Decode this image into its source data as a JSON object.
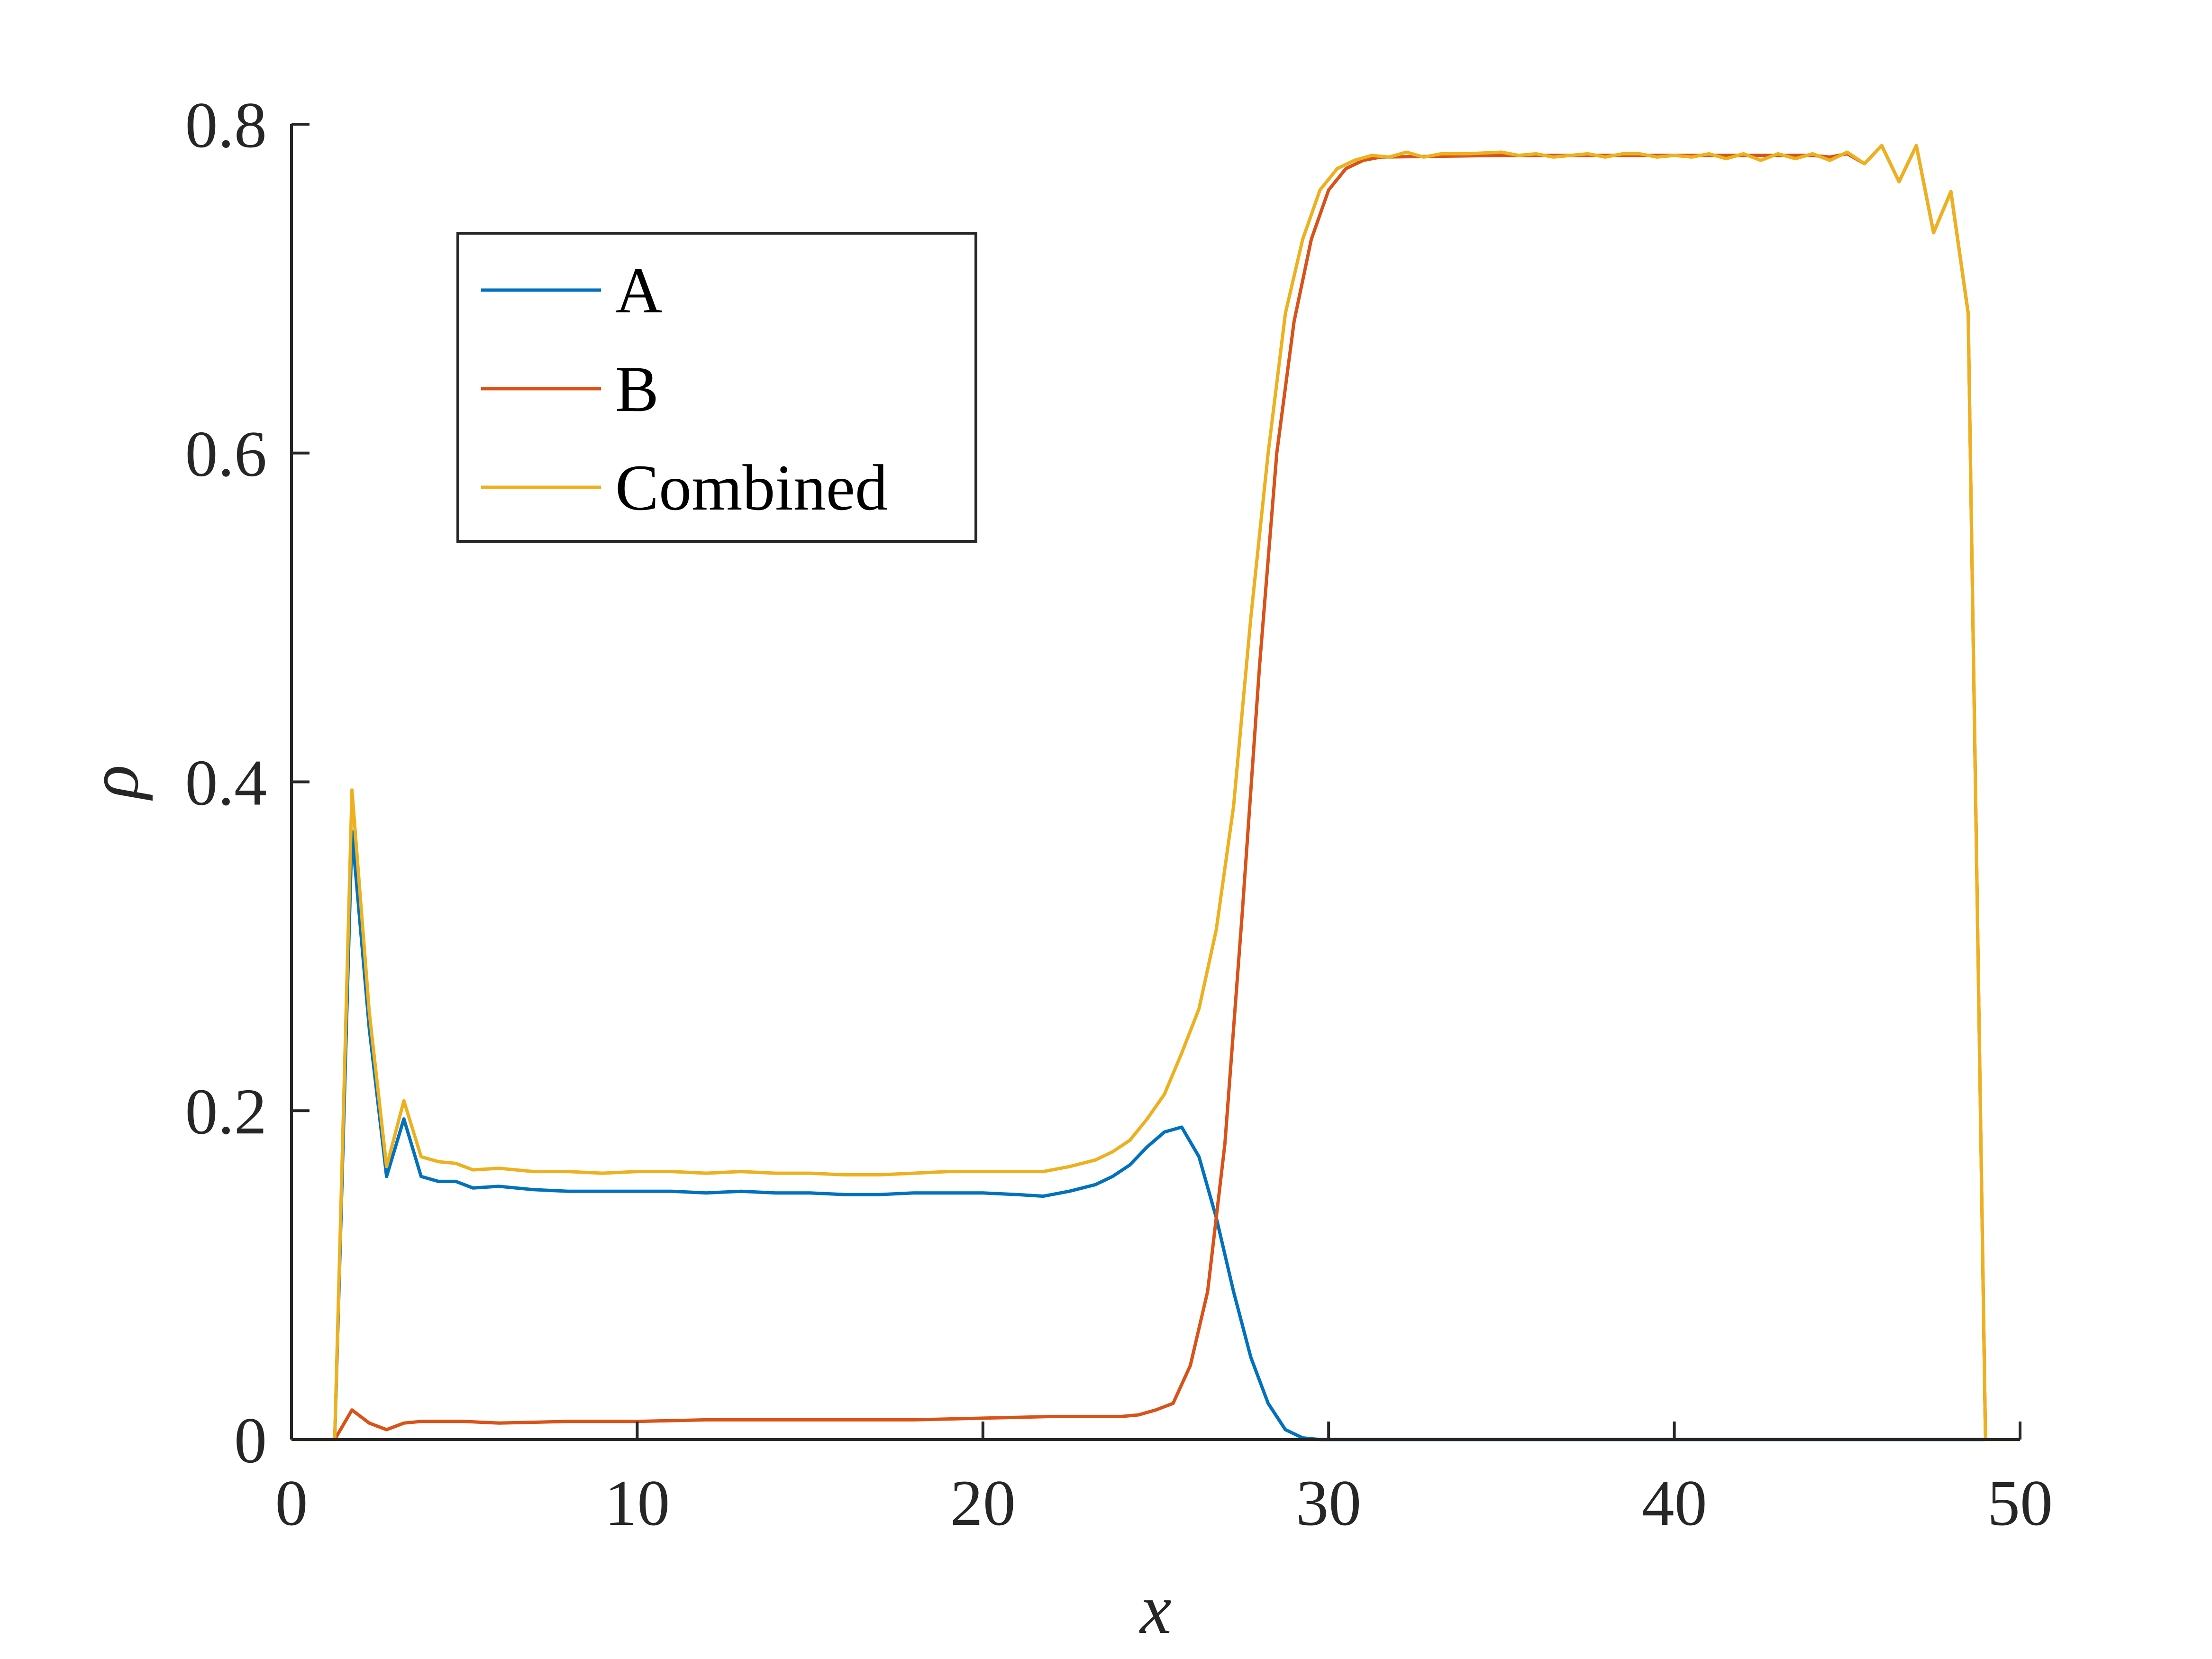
{
  "chart_data": {
    "type": "line",
    "title": "",
    "xlabel": "x",
    "ylabel": "ρ",
    "xlim": [
      0,
      50
    ],
    "ylim": [
      0,
      0.8
    ],
    "xticks": [
      0,
      10,
      20,
      30,
      40,
      50
    ],
    "xtick_labels": [
      "0",
      "10",
      "20",
      "30",
      "40",
      "50"
    ],
    "yticks": [
      0,
      0.2,
      0.4,
      0.6,
      0.8
    ],
    "ytick_labels": [
      "0",
      "0.2",
      "0.4",
      "0.6",
      "0.8"
    ],
    "grid": false,
    "legend_position": "upper-left",
    "series": [
      {
        "name": "A",
        "color": "#0072BD",
        "points": [
          [
            0,
            0
          ],
          [
            1.25,
            0
          ],
          [
            1.75,
            0.37
          ],
          [
            2.25,
            0.25
          ],
          [
            2.75,
            0.16
          ],
          [
            3.25,
            0.195
          ],
          [
            3.75,
            0.16
          ],
          [
            4.25,
            0.157
          ],
          [
            4.75,
            0.157
          ],
          [
            5.25,
            0.153
          ],
          [
            6,
            0.154
          ],
          [
            7,
            0.152
          ],
          [
            8,
            0.151
          ],
          [
            9,
            0.151
          ],
          [
            10,
            0.151
          ],
          [
            11,
            0.151
          ],
          [
            12,
            0.15
          ],
          [
            13,
            0.151
          ],
          [
            14,
            0.15
          ],
          [
            15,
            0.15
          ],
          [
            16,
            0.149
          ],
          [
            17,
            0.149
          ],
          [
            18,
            0.15
          ],
          [
            19,
            0.15
          ],
          [
            20,
            0.15
          ],
          [
            21,
            0.149
          ],
          [
            21.75,
            0.148
          ],
          [
            22.5,
            0.151
          ],
          [
            23.25,
            0.155
          ],
          [
            23.75,
            0.16
          ],
          [
            24.25,
            0.167
          ],
          [
            24.75,
            0.178
          ],
          [
            25.25,
            0.187
          ],
          [
            25.75,
            0.19
          ],
          [
            26.25,
            0.172
          ],
          [
            26.75,
            0.135
          ],
          [
            27.25,
            0.09
          ],
          [
            27.75,
            0.05
          ],
          [
            28.25,
            0.022
          ],
          [
            28.75,
            0.006
          ],
          [
            29.25,
            0.001
          ],
          [
            29.75,
            0
          ],
          [
            50,
            0
          ]
        ]
      },
      {
        "name": "B",
        "color": "#D95319",
        "points": [
          [
            0,
            0
          ],
          [
            1.25,
            0
          ],
          [
            1.75,
            0.018
          ],
          [
            2.25,
            0.01
          ],
          [
            2.75,
            0.006
          ],
          [
            3.25,
            0.01
          ],
          [
            3.75,
            0.011
          ],
          [
            5,
            0.011
          ],
          [
            6,
            0.01
          ],
          [
            8,
            0.011
          ],
          [
            10,
            0.011
          ],
          [
            12,
            0.012
          ],
          [
            14,
            0.012
          ],
          [
            16,
            0.012
          ],
          [
            18,
            0.012
          ],
          [
            20,
            0.013
          ],
          [
            22,
            0.014
          ],
          [
            24,
            0.014
          ],
          [
            24.5,
            0.015
          ],
          [
            25,
            0.018
          ],
          [
            25.5,
            0.022
          ],
          [
            26,
            0.045
          ],
          [
            26.5,
            0.09
          ],
          [
            27,
            0.18
          ],
          [
            27.5,
            0.32
          ],
          [
            28,
            0.47
          ],
          [
            28.5,
            0.6
          ],
          [
            29,
            0.68
          ],
          [
            29.5,
            0.73
          ],
          [
            30,
            0.76
          ],
          [
            30.5,
            0.773
          ],
          [
            31,
            0.778
          ],
          [
            31.5,
            0.78
          ],
          [
            35,
            0.781
          ],
          [
            40,
            0.781
          ],
          [
            44,
            0.781
          ],
          [
            44.5,
            0.78
          ],
          [
            45,
            0.782
          ],
          [
            45.5,
            0.776
          ],
          [
            46,
            0.787
          ],
          [
            46.5,
            0.765
          ],
          [
            47,
            0.787
          ],
          [
            47.5,
            0.734
          ],
          [
            48,
            0.759
          ],
          [
            48.5,
            0.685
          ],
          [
            49,
            0
          ],
          [
            50,
            0
          ]
        ]
      },
      {
        "name": "Combined",
        "color": "#EDB120",
        "points": [
          [
            0,
            0
          ],
          [
            1.25,
            0
          ],
          [
            1.75,
            0.395
          ],
          [
            2.25,
            0.26
          ],
          [
            2.75,
            0.166
          ],
          [
            3.25,
            0.206
          ],
          [
            3.75,
            0.172
          ],
          [
            4.25,
            0.169
          ],
          [
            4.75,
            0.168
          ],
          [
            5.25,
            0.164
          ],
          [
            6,
            0.165
          ],
          [
            7,
            0.163
          ],
          [
            8,
            0.163
          ],
          [
            9,
            0.162
          ],
          [
            10,
            0.163
          ],
          [
            11,
            0.163
          ],
          [
            12,
            0.162
          ],
          [
            13,
            0.163
          ],
          [
            14,
            0.162
          ],
          [
            15,
            0.162
          ],
          [
            16,
            0.161
          ],
          [
            17,
            0.161
          ],
          [
            18,
            0.162
          ],
          [
            19,
            0.163
          ],
          [
            20,
            0.163
          ],
          [
            21,
            0.163
          ],
          [
            21.75,
            0.163
          ],
          [
            22.5,
            0.166
          ],
          [
            23.25,
            0.17
          ],
          [
            23.75,
            0.175
          ],
          [
            24.25,
            0.182
          ],
          [
            24.75,
            0.195
          ],
          [
            25.25,
            0.21
          ],
          [
            25.75,
            0.235
          ],
          [
            26.25,
            0.262
          ],
          [
            26.75,
            0.31
          ],
          [
            27.25,
            0.385
          ],
          [
            27.75,
            0.5
          ],
          [
            28.25,
            0.6
          ],
          [
            28.75,
            0.685
          ],
          [
            29.25,
            0.73
          ],
          [
            29.75,
            0.76
          ],
          [
            30.25,
            0.773
          ],
          [
            30.75,
            0.778
          ],
          [
            31.25,
            0.781
          ],
          [
            31.75,
            0.78
          ],
          [
            32.25,
            0.783
          ],
          [
            32.75,
            0.78
          ],
          [
            33.25,
            0.782
          ],
          [
            34,
            0.782
          ],
          [
            35,
            0.783
          ],
          [
            35.5,
            0.781
          ],
          [
            36,
            0.782
          ],
          [
            36.5,
            0.78
          ],
          [
            37,
            0.781
          ],
          [
            37.5,
            0.782
          ],
          [
            38,
            0.78
          ],
          [
            38.5,
            0.782
          ],
          [
            39,
            0.782
          ],
          [
            39.5,
            0.78
          ],
          [
            40,
            0.781
          ],
          [
            40.5,
            0.78
          ],
          [
            41,
            0.782
          ],
          [
            41.5,
            0.779
          ],
          [
            42,
            0.782
          ],
          [
            42.5,
            0.778
          ],
          [
            43,
            0.782
          ],
          [
            43.5,
            0.779
          ],
          [
            44,
            0.782
          ],
          [
            44.5,
            0.778
          ],
          [
            45,
            0.783
          ],
          [
            45.5,
            0.776
          ],
          [
            46,
            0.787
          ],
          [
            46.5,
            0.765
          ],
          [
            47,
            0.787
          ],
          [
            47.5,
            0.734
          ],
          [
            48,
            0.759
          ],
          [
            48.5,
            0.685
          ],
          [
            49,
            0
          ],
          [
            50,
            0
          ]
        ]
      }
    ]
  }
}
